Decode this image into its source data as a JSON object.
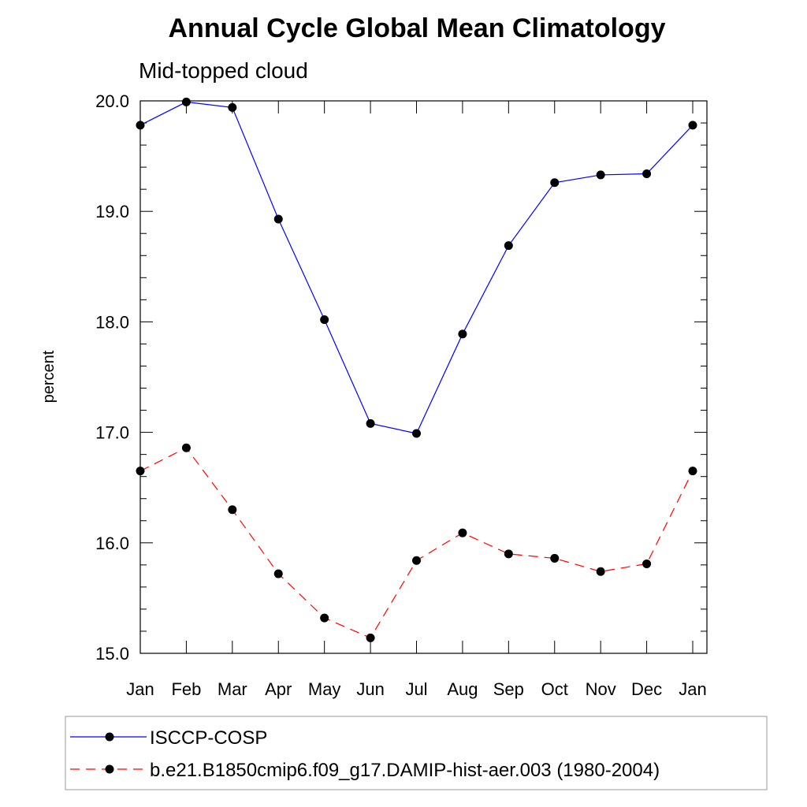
{
  "chart_data": {
    "type": "line",
    "title": "Annual Cycle Global Mean Climatology",
    "subtitle": "Mid-topped cloud",
    "xlabel": "",
    "ylabel": "percent",
    "categories": [
      "Jan",
      "Feb",
      "Mar",
      "Apr",
      "May",
      "Jun",
      "Jul",
      "Aug",
      "Sep",
      "Oct",
      "Nov",
      "Dec",
      "Jan"
    ],
    "y_ticks": [
      "15.0",
      "16.0",
      "17.0",
      "18.0",
      "19.0",
      "20.0"
    ],
    "ylim": [
      15.0,
      20.0
    ],
    "grid": false,
    "legend_position": "bottom",
    "series": [
      {
        "name": "ISCCP-COSP",
        "color": "#0000ff",
        "line_style": "solid",
        "marker": "filled-circle",
        "values": [
          19.78,
          19.99,
          19.94,
          18.93,
          18.02,
          17.08,
          16.99,
          17.89,
          18.69,
          19.26,
          19.33,
          19.34,
          19.78
        ]
      },
      {
        "name": "b.e21.B1850cmip6.f09_g17.DAMIP-hist-aer.003 (1980-2004)",
        "color": "#ff0000",
        "line_style": "dashed",
        "marker": "filled-circle",
        "values": [
          16.65,
          16.86,
          16.3,
          15.72,
          15.32,
          15.14,
          15.84,
          16.09,
          15.9,
          15.86,
          15.74,
          15.81,
          16.65
        ]
      }
    ]
  }
}
